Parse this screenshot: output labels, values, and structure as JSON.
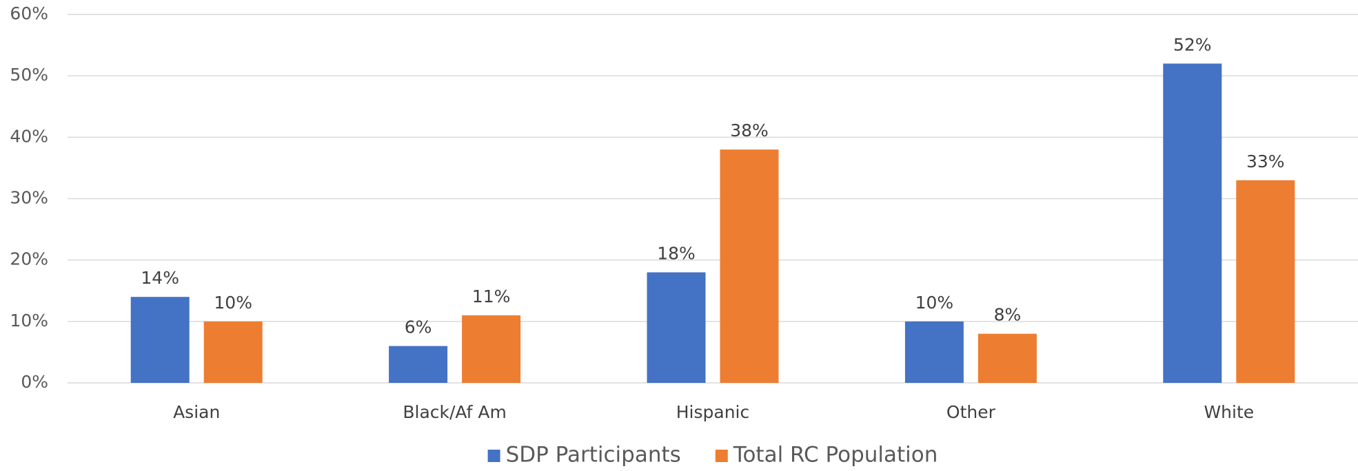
{
  "chart_data": {
    "type": "bar",
    "categories": [
      "Asian",
      "Black/Af Am",
      "Hispanic",
      "Other",
      "White"
    ],
    "series": [
      {
        "name": "SDP Participants",
        "color": "#4472c4",
        "values": [
          14,
          6,
          18,
          10,
          52
        ],
        "value_labels": [
          "14%",
          "6%",
          "18%",
          "10%",
          "52%"
        ]
      },
      {
        "name": "Total RC Population",
        "color": "#ed7d31",
        "values": [
          10,
          11,
          38,
          8,
          33
        ],
        "value_labels": [
          "10%",
          "11%",
          "38%",
          "8%",
          "33%"
        ]
      }
    ],
    "ylim": [
      0,
      60
    ],
    "yticks": [
      {
        "value": 0,
        "label": "0%"
      },
      {
        "value": 10,
        "label": "10%"
      },
      {
        "value": 20,
        "label": "20%"
      },
      {
        "value": 30,
        "label": "30%"
      },
      {
        "value": 40,
        "label": "40%"
      },
      {
        "value": 50,
        "label": "50%"
      },
      {
        "value": 60,
        "label": "60%"
      }
    ],
    "grid": true,
    "legend": "bottom"
  }
}
